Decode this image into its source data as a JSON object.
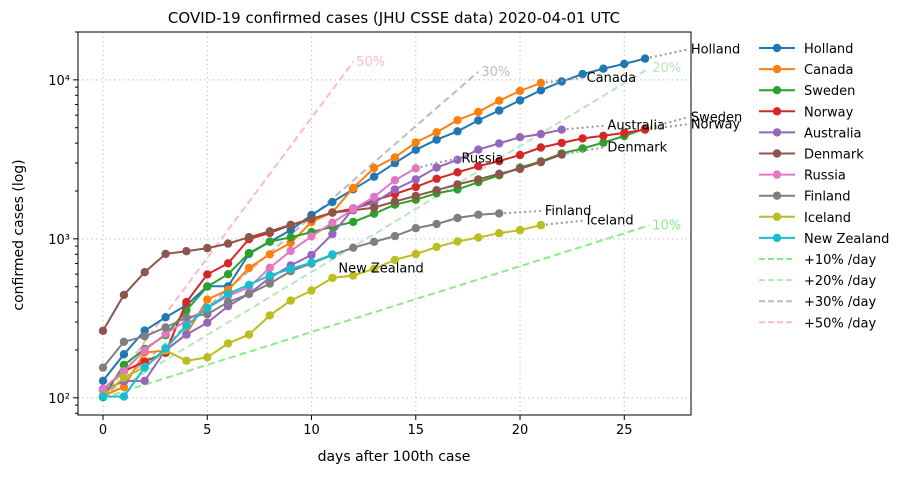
{
  "chart_data": {
    "type": "line",
    "title": "COVID-19 confirmed cases (JHU CSSE data) 2020-04-01 UTC",
    "xlabel": "days after 100th case",
    "ylabel": "confirmed cases (log)",
    "xlim": [
      -1.2,
      28.2
    ],
    "ylim": [
      78,
      20000
    ],
    "yscale": "log",
    "grid": true,
    "legend_position": "outside-right",
    "x_ticks": [
      0,
      5,
      10,
      15,
      20,
      25
    ],
    "y_ticks": [
      {
        "value": 100,
        "label": "10²"
      },
      {
        "value": 1000,
        "label": "10³"
      },
      {
        "value": 10000,
        "label": "10⁴"
      }
    ],
    "series": [
      {
        "name": "Holland",
        "color": "#1f77b4",
        "end_label": "Holland",
        "values": [
          128,
          188,
          265,
          321,
          382,
          503,
          503,
          804,
          959,
          1135,
          1413,
          1705,
          2051,
          2460,
          2994,
          3631,
          4204,
          4749,
          5560,
          6412,
          7431,
          8603,
          9762,
          10866,
          11750,
          12595,
          13614
        ],
        "trail": [
          13614,
          14500,
          15500
        ]
      },
      {
        "name": "Canada",
        "color": "#ff7f0e",
        "end_label": "Canada",
        "values": [
          103,
          117,
          193,
          198,
          252,
          415,
          478,
          657,
          800,
          943,
          1277,
          1469,
          2088,
          2790,
          3251,
          4042,
          4682,
          5576,
          6280,
          7398,
          8527,
          9560
        ],
        "trail": [
          9560,
          9900,
          10300
        ]
      },
      {
        "name": "Sweden",
        "color": "#2ca02c",
        "end_label": "Sweden",
        "values": [
          101,
          161,
          203,
          248,
          355,
          500,
          599,
          814,
          961,
          1022,
          1103,
          1190,
          1279,
          1439,
          1639,
          1763,
          1934,
          2046,
          2272,
          2510,
          2806,
          3069,
          3447,
          3700,
          4028,
          4435,
          4947
        ],
        "trail": [
          4947,
          5350,
          5800
        ]
      },
      {
        "name": "Norway",
        "color": "#d62728",
        "end_label": "Norway",
        "values": [
          113,
          147,
          169,
          192,
          400,
          598,
          702,
          996,
          1090,
          1221,
          1333,
          1463,
          1550,
          1746,
          1914,
          2118,
          2385,
          2621,
          2863,
          3084,
          3369,
          3755,
          4015,
          4284,
          4445,
          4641,
          4863
        ],
        "trail": [
          4863,
          5050,
          5250
        ]
      },
      {
        "name": "Australia",
        "color": "#9467bd",
        "end_label": "Australia",
        "values": [
          112,
          127,
          128,
          200,
          250,
          297,
          377,
          452,
          568,
          681,
          791,
          1071,
          1549,
          1682,
          2044,
          2364,
          2810,
          3143,
          3640,
          3984,
          4361,
          4559,
          4862
        ],
        "trail": [
          4862,
          5000,
          5150
        ]
      },
      {
        "name": "Denmark",
        "color": "#8c564b",
        "end_label": "Denmark",
        "values": [
          264,
          444,
          617,
          804,
          836,
          875,
          933,
          1024,
          1115,
          1225,
          1337,
          1460,
          1514,
          1572,
          1718,
          1862,
          2023,
          2200,
          2366,
          2564,
          2755,
          3039,
          3386
        ],
        "trail": [
          3386,
          3573,
          3757
        ]
      },
      {
        "name": "Russia",
        "color": "#e377c2",
        "end_label": "Russia",
        "values": [
          114,
          147,
          199,
          253,
          306,
          367,
          438,
          495,
          658,
          840,
          1036,
          1264,
          1534,
          1836,
          2337,
          2777
        ],
        "trail": [
          2777,
          3000,
          3200
        ]
      },
      {
        "name": "Finland",
        "color": "#7f7f7f",
        "end_label": "Finland",
        "values": [
          155,
          225,
          244,
          277,
          321,
          336,
          400,
          450,
          523,
          626,
          700,
          792,
          880,
          958,
          1041,
          1167,
          1240,
          1352,
          1418,
          1446
        ],
        "trail": [
          1446,
          1470,
          1500
        ]
      },
      {
        "name": "Iceland",
        "color": "#bcbd22",
        "end_label": "Iceland",
        "values": [
          103,
          134,
          156,
          199,
          171,
          180,
          220,
          250,
          330,
          409,
          473,
          568,
          588,
          648,
          737,
          802,
          890,
          963,
          1020,
          1086,
          1135,
          1220
        ],
        "trail": [
          1220,
          1260,
          1300
        ]
      },
      {
        "name": "New Zealand",
        "color": "#17becf",
        "end_label": "New Zealand",
        "values": [
          102,
          102,
          155,
          205,
          283,
          368,
          451,
          514,
          589,
          647,
          708,
          797
        ],
        "trail": []
      }
    ],
    "guides": [
      {
        "name": "+10% /day",
        "color": "#88ee88",
        "rate": 0.1,
        "x_end": 26.2,
        "label": "10%"
      },
      {
        "name": "+20% /day",
        "color": "#bbe5bb",
        "rate": 0.2,
        "x_end": 26.2,
        "label": "20%"
      },
      {
        "name": "+30% /day",
        "color": "#bcbcbc",
        "rate": 0.3,
        "x_end": 18.0,
        "label": "30%"
      },
      {
        "name": "+50% /day",
        "color": "#ffbbbb",
        "rate": 0.5,
        "x_end": 12.0,
        "label": "50%"
      }
    ]
  }
}
